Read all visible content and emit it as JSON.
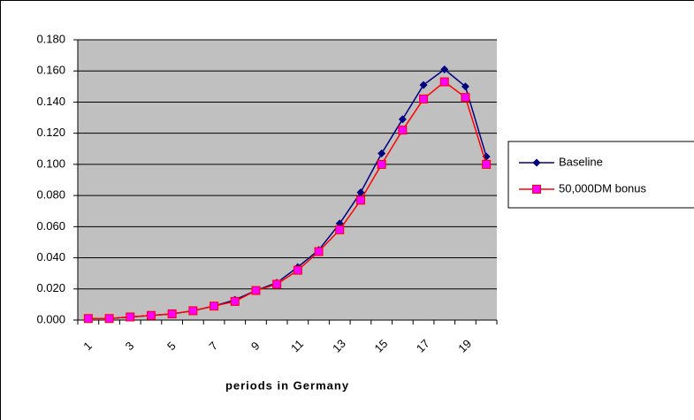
{
  "chart_data": {
    "type": "line",
    "x_label": "periods in Germany",
    "categories": [
      "1",
      null,
      "3",
      null,
      "5",
      null,
      "7",
      null,
      "9",
      null,
      "11",
      null,
      "13",
      null,
      "15",
      null,
      "17",
      null,
      "19",
      null
    ],
    "series": [
      {
        "name": "Baseline",
        "color": "#000080",
        "marker": "diamond",
        "values": [
          0.001,
          0.001,
          0.002,
          0.003,
          0.004,
          0.006,
          0.009,
          0.013,
          0.019,
          0.024,
          0.034,
          0.045,
          0.062,
          0.082,
          0.107,
          0.129,
          0.151,
          0.161,
          0.15,
          0.105
        ]
      },
      {
        "name": "50,000DM bonus",
        "color": "#ff0000",
        "marker_fill": "#ff00ff",
        "marker": "square",
        "values": [
          0.001,
          0.001,
          0.002,
          0.003,
          0.004,
          0.006,
          0.009,
          0.012,
          0.019,
          0.023,
          0.032,
          0.044,
          0.058,
          0.077,
          0.1,
          0.122,
          0.142,
          0.153,
          0.143,
          0.1
        ]
      }
    ],
    "ylim": [
      0,
      0.18
    ],
    "yticks": [
      {
        "value": 0,
        "label": "0.000"
      },
      {
        "value": 0.02,
        "label": "0.020"
      },
      {
        "value": 0.04,
        "label": "0.040"
      },
      {
        "value": 0.06,
        "label": "0.060"
      },
      {
        "value": 0.08,
        "label": "0.080"
      },
      {
        "value": 0.1,
        "label": "0.100"
      },
      {
        "value": 0.12,
        "label": "0.120"
      },
      {
        "value": 0.14,
        "label": "0.140"
      },
      {
        "value": 0.16,
        "label": "0.160"
      },
      {
        "value": 0.18,
        "label": "0.180"
      }
    ],
    "grid": true,
    "plot_background": "#c0c0c0",
    "legend": "right"
  }
}
